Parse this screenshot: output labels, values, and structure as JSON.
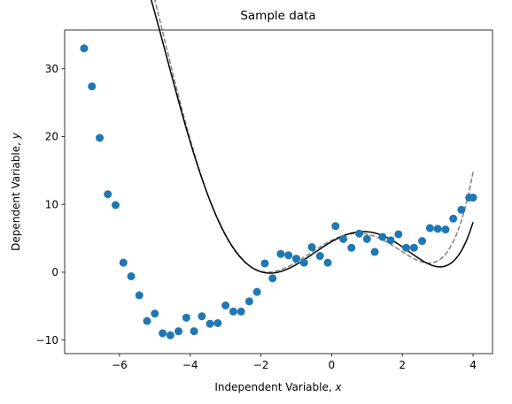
{
  "chart_data": {
    "type": "scatter",
    "title": "Sample data",
    "xlabel": "Independent Variable, ",
    "xlabel_var": "x",
    "ylabel": "Dependent Variable, ",
    "ylabel_var": "y",
    "xlim": [
      -7.55,
      4.55
    ],
    "ylim": [
      -12.0,
      35.7
    ],
    "xticks": [
      -6,
      -4,
      -2,
      0,
      2,
      4
    ],
    "yticks": [
      -10,
      0,
      10,
      20,
      30
    ],
    "xtick_labels": [
      "−6",
      "−4",
      "−2",
      "0",
      "2",
      "4"
    ],
    "ytick_labels": [
      "−10",
      "0",
      "10",
      "20",
      "30"
    ],
    "grid": false,
    "scatter": {
      "color": "#1f77b4",
      "x": [
        -7.0,
        -6.78,
        -6.56,
        -6.33,
        -6.11,
        -5.89,
        -5.67,
        -5.44,
        -5.22,
        -5.0,
        -4.78,
        -4.56,
        -4.33,
        -4.11,
        -3.89,
        -3.67,
        -3.44,
        -3.22,
        -3.0,
        -2.78,
        -2.56,
        -2.33,
        -2.11,
        -1.89,
        -1.67,
        -1.44,
        -1.22,
        -1.0,
        -0.78,
        -0.56,
        -0.33,
        -0.11,
        0.11,
        0.33,
        0.56,
        0.78,
        1.0,
        1.22,
        1.44,
        1.67,
        1.89,
        2.11,
        2.33,
        2.56,
        2.78,
        3.0,
        3.22,
        3.44,
        3.67,
        3.89,
        4.0
      ],
      "y": [
        33.0,
        27.4,
        19.8,
        11.5,
        9.9,
        1.4,
        -0.6,
        -3.4,
        -7.2,
        -6.1,
        -9.0,
        -9.3,
        -8.7,
        -6.7,
        -8.7,
        -6.5,
        -7.6,
        -7.5,
        -4.9,
        -5.8,
        -5.8,
        -4.3,
        -2.9,
        1.3,
        -0.9,
        2.7,
        2.5,
        2.0,
        1.4,
        3.7,
        2.4,
        1.4,
        6.8,
        4.9,
        3.6,
        5.7,
        4.9,
        3.0,
        5.2,
        4.7,
        5.6,
        3.6,
        3.6,
        4.6,
        6.5,
        6.4,
        6.3,
        7.9,
        9.2,
        11.0,
        11.0
      ]
    },
    "fit_solid": {
      "color": "#000000",
      "coef": [
        0.02,
        0.1,
        -0.6,
        -1.05,
        3.0,
        4.5
      ]
    },
    "fit_dashed": {
      "color": "#808080",
      "coef": [
        0.0225,
        0.13,
        -0.56,
        -1.3,
        2.6,
        4.7
      ]
    }
  }
}
